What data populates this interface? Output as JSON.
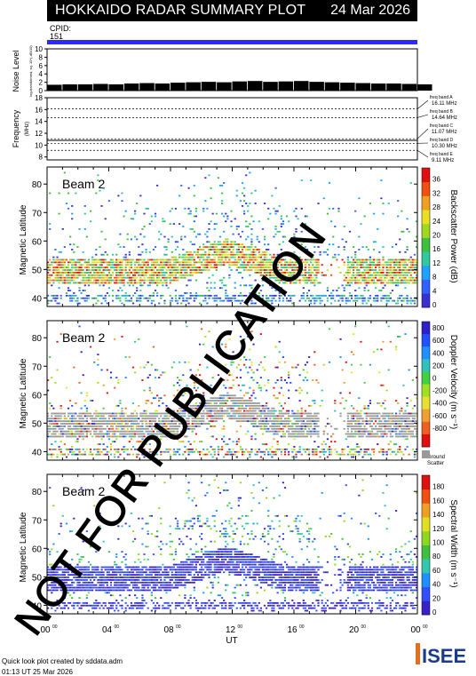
{
  "header": {
    "title": "HOKKAIDO RADAR SUMMARY PLOT",
    "date": "24 Mar 2026",
    "cpid_label": "CPID:",
    "cpid_value": "151"
  },
  "watermark": "NOT FOR PUBLICATION",
  "footer": {
    "line1": "Quick look plot created by sddata.adm",
    "line2": "01:13 UT 25 Mar 2026",
    "logo": "ISEE"
  },
  "colors": {
    "cpid_bar": "#2a2aff",
    "ground_scatter": "#999999"
  },
  "chart_data": [
    {
      "type": "bar",
      "name": "noise",
      "ylabel": "Noise Level",
      "ylabel_sub": "log-transformed, sq. 10^(-dB/10)",
      "ylim": [
        0,
        10
      ],
      "yticks": [
        "0",
        "2",
        "4",
        "6",
        "8",
        "10"
      ],
      "x": [
        0,
        1,
        2,
        3,
        4,
        5,
        6,
        7,
        8,
        9,
        10,
        11,
        12,
        13,
        14,
        15,
        16,
        17,
        18,
        19,
        20,
        21,
        22,
        23,
        24
      ],
      "values": [
        1.4,
        1.5,
        1.5,
        1.6,
        1.5,
        1.7,
        1.8,
        1.7,
        1.9,
        2.0,
        2.1,
        2.0,
        2.2,
        2.3,
        2.1,
        2.2,
        2.3,
        2.1,
        2.0,
        1.9,
        1.8,
        1.7,
        1.7,
        1.6,
        1.5
      ]
    },
    {
      "type": "line",
      "name": "frequency",
      "ylabel": "Frequency",
      "ylabel_sub": "(MHz)",
      "ylim": [
        7.5,
        18
      ],
      "yticks": [
        "8",
        "10",
        "12",
        "14",
        "16",
        "18"
      ],
      "bands": [
        {
          "label": "freq band A",
          "value": "16.11 MHz",
          "freq": 16.11
        },
        {
          "label": "freq band B",
          "value": "14.64 MHz",
          "freq": 14.64
        },
        {
          "label": "freq band C",
          "value": "11.07 MHz",
          "freq": 11.07
        },
        {
          "label": "freq band D",
          "value": "10.30 MHz",
          "freq": 10.3
        },
        {
          "label": "freq band E",
          "value": "9.11 MHz",
          "freq": 9.11
        }
      ],
      "series": [
        {
          "x": [
            0,
            24
          ],
          "values": [
            10.8,
            10.8
          ]
        }
      ]
    },
    {
      "type": "heatmap",
      "name": "power",
      "label": "Beam  2",
      "ylabel": "Magnetic Latitude",
      "ylim": [
        37,
        86
      ],
      "yticks": [
        "40",
        "50",
        "60",
        "70",
        "80"
      ],
      "colorbar_label": "Backscatter Power (dB)",
      "colorbar_ticks": [
        "0",
        "4",
        "8",
        "12",
        "16",
        "20",
        "24",
        "28",
        "32",
        "36"
      ],
      "colorbar_colors": [
        "#3a30d0",
        "#3060ff",
        "#20a0ff",
        "#30c8a0",
        "#40c040",
        "#a0d820",
        "#e8e020",
        "#f0a020",
        "#f05010",
        "#e01010"
      ]
    },
    {
      "type": "heatmap",
      "name": "velocity",
      "label": "Beam  2",
      "ylabel": "Magnetic Latitude",
      "ylim": [
        37,
        86
      ],
      "yticks": [
        "40",
        "50",
        "60",
        "70",
        "80"
      ],
      "colorbar_label": "Doppler Velocity (m s⁻¹)",
      "colorbar_ticks": [
        "800",
        "600",
        "400",
        "200",
        "0",
        "-200",
        "-400",
        "-600",
        "-800"
      ],
      "colorbar_colors": [
        "#3020c8",
        "#2050ff",
        "#2090ff",
        "#30c0c0",
        "#40d040",
        "#a0e020",
        "#e8e030",
        "#f0a030",
        "#f06020",
        "#e01010"
      ],
      "ground_scatter_label": "Ground",
      "ground_scatter_label2": "Scatter"
    },
    {
      "type": "heatmap",
      "name": "width",
      "label": "Beam  2",
      "ylabel": "Magnetic Latitude",
      "ylim": [
        37,
        86
      ],
      "yticks": [
        "40",
        "50",
        "60",
        "70",
        "80"
      ],
      "colorbar_label": "Spectral Width (m s⁻¹)",
      "colorbar_ticks": [
        "0",
        "20",
        "40",
        "60",
        "80",
        "100",
        "120",
        "140",
        "160",
        "180"
      ],
      "colorbar_colors": [
        "#3a20c8",
        "#3050ff",
        "#2090ff",
        "#30c8b0",
        "#40c040",
        "#90d820",
        "#e0e020",
        "#f0a020",
        "#f05010",
        "#e01010"
      ],
      "xlabel": "UT",
      "xticks": [
        "00",
        "04",
        "08",
        "12",
        "16",
        "20",
        "00"
      ],
      "xtick_sup": "00"
    }
  ]
}
